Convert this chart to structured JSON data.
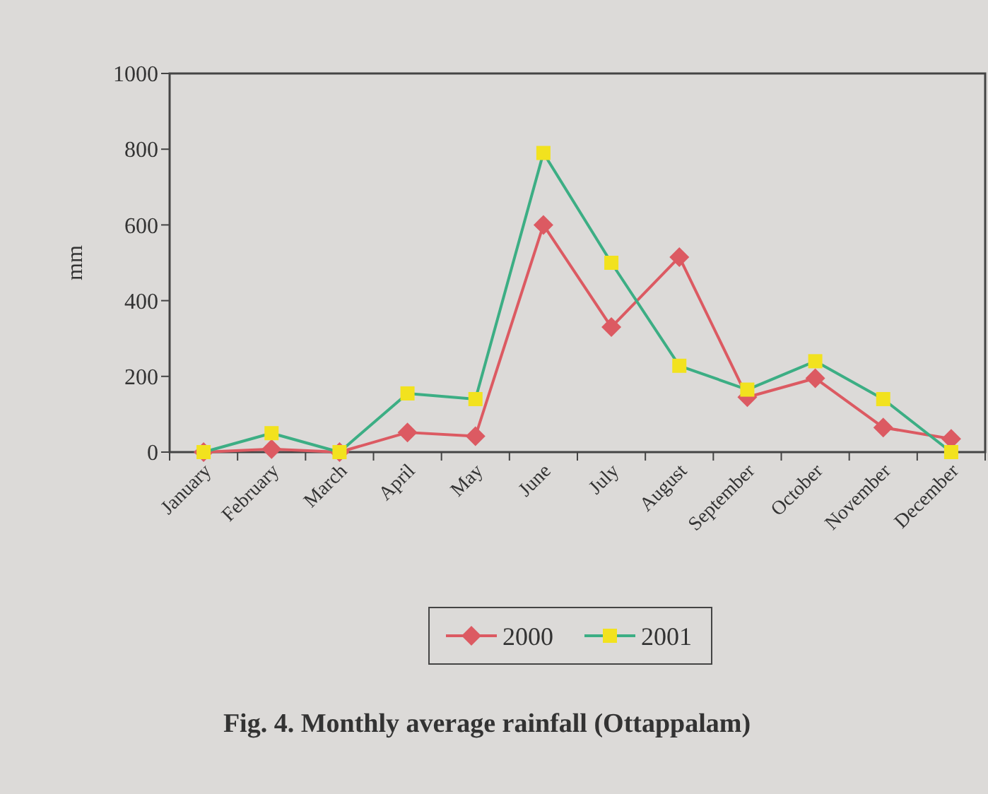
{
  "chart_data": {
    "type": "line",
    "title": "Fig. 4. Monthly average rainfall (Ottappalam)",
    "ylabel": "mm",
    "categories": [
      "January",
      "February",
      "March",
      "April",
      "May",
      "June",
      "July",
      "August",
      "September",
      "October",
      "November",
      "December"
    ],
    "series": [
      {
        "name": "2000",
        "color": "#dc5a62",
        "marker": "diamond",
        "values": [
          0,
          8,
          0,
          52,
          42,
          600,
          330,
          515,
          145,
          195,
          65,
          35
        ]
      },
      {
        "name": "2001",
        "color": "#3cae84",
        "colors": [
          "#f2e21e",
          "#f2e21e",
          "#f2e21e",
          "#f2e21e",
          "#f2e21e",
          "#f2e21e",
          "#f2e21e",
          "#f2e21e",
          "#f2e21e",
          "#f2e21e",
          "#f2e21e",
          "#f2e21e"
        ],
        "marker": "square",
        "values": [
          0,
          50,
          0,
          155,
          140,
          790,
          500,
          228,
          165,
          240,
          140,
          0
        ]
      }
    ],
    "ylim": [
      0,
      1000
    ],
    "yticks": [
      0,
      200,
      400,
      600,
      800,
      1000
    ],
    "grid": false,
    "legend": "bottom",
    "line_style": "solid"
  }
}
